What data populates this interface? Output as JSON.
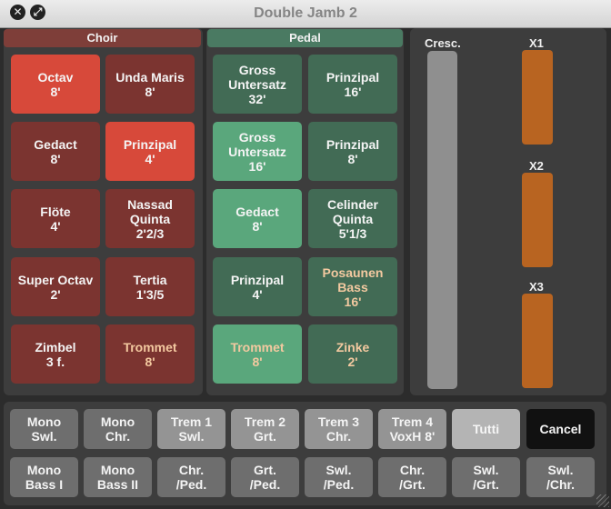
{
  "window": {
    "title": "Double Jamb 2",
    "close_glyph": "✕",
    "resize_glyph": "⤢"
  },
  "colors": {
    "choir_header": "#7e3e39",
    "choir_stop_off": "#7b3430",
    "choir_stop_on": "#d7493a",
    "pedal_header": "#4a7a62",
    "pedal_stop_off": "#426b55",
    "pedal_stop_on": "#5aa77c",
    "swell_box": "#b86421",
    "crescendo": "#8f8f8f"
  },
  "choir": {
    "header": "Choir",
    "stops": [
      {
        "name": "Octav",
        "pitch": "8'",
        "on": true
      },
      {
        "name": "Unda Maris",
        "pitch": "8'",
        "on": false
      },
      {
        "name": "Gedact",
        "pitch": "8'",
        "on": false
      },
      {
        "name": "Prinzipal",
        "pitch": "4'",
        "on": true
      },
      {
        "name": "Flöte",
        "pitch": "4'",
        "on": false
      },
      {
        "name": "Nassad Quinta",
        "pitch": "2'2/3",
        "on": false
      },
      {
        "name": "Super Octav",
        "pitch": "2'",
        "on": false
      },
      {
        "name": "Tertia",
        "pitch": "1'3/5",
        "on": false
      },
      {
        "name": "Zimbel",
        "pitch": "3 f.",
        "on": false
      },
      {
        "name": "Trommet",
        "pitch": "8'",
        "on": false
      }
    ]
  },
  "pedal": {
    "header": "Pedal",
    "stops": [
      {
        "name": "Gross Untersatz",
        "pitch": "32'",
        "on": false
      },
      {
        "name": "Prinzipal",
        "pitch": "16'",
        "on": false
      },
      {
        "name": "Gross Untersatz",
        "pitch": "16'",
        "on": true
      },
      {
        "name": "Prinzipal",
        "pitch": "8'",
        "on": false
      },
      {
        "name": "Gedact",
        "pitch": "8'",
        "on": true
      },
      {
        "name": "Celinder Quinta",
        "pitch": "5'1/3",
        "on": false
      },
      {
        "name": "Prinzipal",
        "pitch": "4'",
        "on": false
      },
      {
        "name": "Posaunen Bass",
        "pitch": "16'",
        "on": false
      },
      {
        "name": "Trommet",
        "pitch": "8'",
        "on": true
      },
      {
        "name": "Zinke",
        "pitch": "2'",
        "on": false
      }
    ]
  },
  "expression": {
    "crescendo_label": "Cresc.",
    "swells": [
      {
        "label": "X1"
      },
      {
        "label": "X2"
      },
      {
        "label": "X3"
      }
    ]
  },
  "buttons": {
    "row1": [
      {
        "line1": "Mono",
        "line2": "Swl."
      },
      {
        "line1": "Mono",
        "line2": "Chr."
      },
      {
        "line1": "Trem 1",
        "line2": "Swl."
      },
      {
        "line1": "Trem 2",
        "line2": "Grt."
      },
      {
        "line1": "Trem 3",
        "line2": "Chr."
      },
      {
        "line1": "Trem 4",
        "line2": "VoxH 8'"
      },
      {
        "line1": "Tutti",
        "line2": ""
      },
      {
        "line1": "Cancel",
        "line2": ""
      }
    ],
    "row2": [
      {
        "line1": "Mono",
        "line2": "Bass I"
      },
      {
        "line1": "Mono",
        "line2": "Bass II"
      },
      {
        "line1": "Chr.",
        "line2": "/Ped."
      },
      {
        "line1": "Grt.",
        "line2": "/Ped."
      },
      {
        "line1": "Swl.",
        "line2": "/Ped."
      },
      {
        "line1": "Chr.",
        "line2": "/Grt."
      },
      {
        "line1": "Swl.",
        "line2": "/Grt."
      },
      {
        "line1": "Swl.",
        "line2": "/Chr."
      }
    ]
  }
}
